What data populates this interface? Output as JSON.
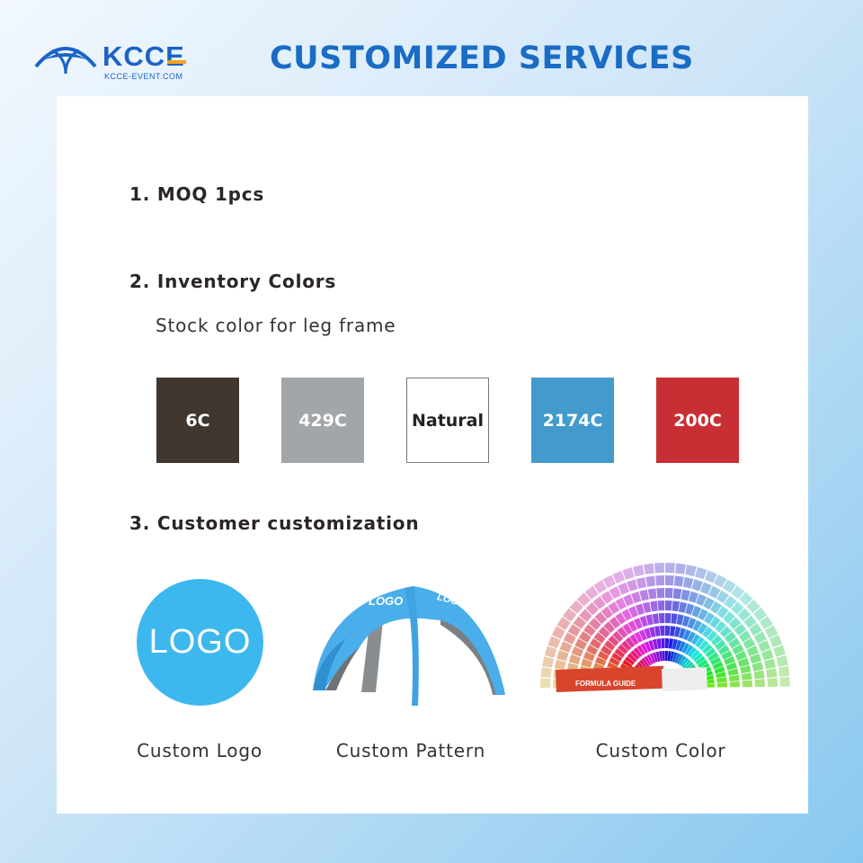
{
  "brand": {
    "name": "KCCE",
    "site": "KCCE-EVENT.COM",
    "color": "#1a63c8",
    "accent": "#f5a21b"
  },
  "header": {
    "title": "CUSTOMIZED SERVICES"
  },
  "sections": [
    {
      "heading": "1. MOQ 1pcs"
    },
    {
      "heading": "2. Inventory Colors",
      "subtext": "Stock color for leg frame"
    },
    {
      "heading": "3. Customer customization"
    }
  ],
  "swatches": [
    {
      "label": "6C",
      "color": "#3f3730",
      "text_color": "#ffffff"
    },
    {
      "label": "429C",
      "color": "#a3a6a9",
      "text_color": "#ffffff"
    },
    {
      "label": "Natural",
      "color": "#ffffff",
      "text_color": "#222222"
    },
    {
      "label": "2174C",
      "color": "#429bcc",
      "text_color": "#ffffff"
    },
    {
      "label": "200C",
      "color": "#c82f35",
      "text_color": "#ffffff"
    }
  ],
  "customization": [
    {
      "caption": "Custom Logo",
      "image_text": "LOGO"
    },
    {
      "caption": "Custom Pattern",
      "image_text": "LOGO"
    },
    {
      "caption": "Custom Color",
      "image_text": "FORMULA GUIDE"
    }
  ]
}
